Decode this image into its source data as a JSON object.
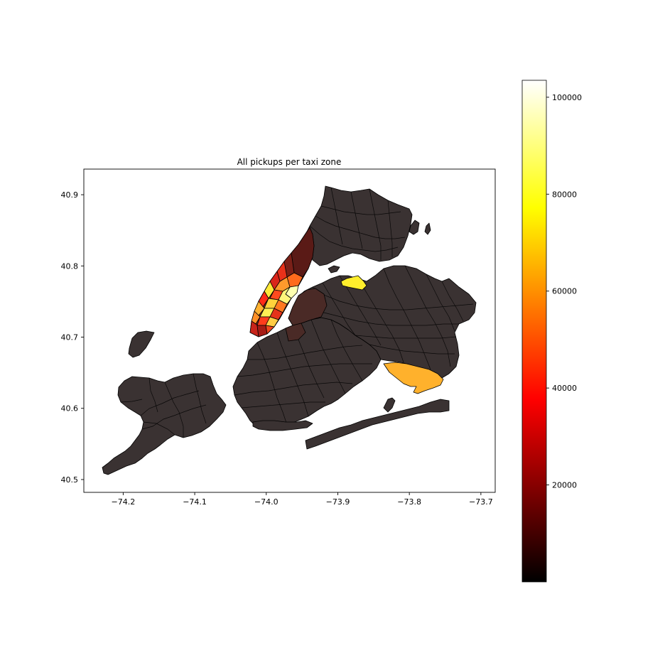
{
  "chart_data": {
    "type": "choropleth",
    "title": "All pickups per taxi zone",
    "xlim": [
      -74.255,
      -73.68
    ],
    "ylim": [
      40.482,
      40.936
    ],
    "xticks": [
      -74.2,
      -74.1,
      -74.0,
      -73.9,
      -73.8,
      -73.7
    ],
    "xtick_labels": [
      "−74.2",
      "−74.1",
      "−74.0",
      "−73.9",
      "−73.8",
      "−73.7"
    ],
    "yticks": [
      40.5,
      40.6,
      40.7,
      40.8,
      40.9
    ],
    "ytick_labels": [
      "40.5",
      "40.6",
      "40.7",
      "40.8",
      "40.9"
    ],
    "colorbar": {
      "colormap": "hot",
      "range": [
        0,
        103500
      ],
      "ticks": [
        20000,
        40000,
        60000,
        80000,
        100000
      ],
      "tick_labels": [
        "20000",
        "40000",
        "60000",
        "80000",
        "100000"
      ]
    },
    "colors": {
      "base_zone": "#3a3232",
      "outline": "#000000"
    }
  }
}
